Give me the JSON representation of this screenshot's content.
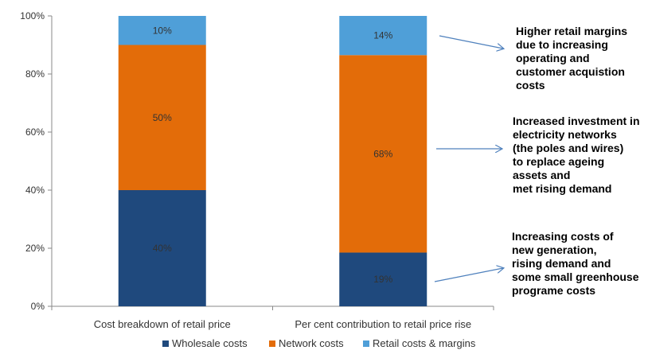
{
  "chart_data": {
    "type": "bar",
    "stacked": true,
    "categories": [
      "Cost breakdown of retail price",
      "Per cent contribution to retail price rise"
    ],
    "series": [
      {
        "name": "Wholesale costs",
        "values": [
          40,
          18.5
        ],
        "labels": [
          "40%",
          "19%"
        ],
        "color": "#1F497D"
      },
      {
        "name": "Network costs",
        "values": [
          50,
          68
        ],
        "labels": [
          "50%",
          "68%"
        ],
        "color": "#E36C09"
      },
      {
        "name": "Retail costs & margins",
        "values": [
          10,
          13.5
        ],
        "labels": [
          "10%",
          "14%"
        ],
        "color": "#4F9FD8"
      }
    ],
    "ylim": [
      0,
      100
    ],
    "yticks": [
      "0%",
      "20%",
      "40%",
      "60%",
      "80%",
      "100%"
    ],
    "ytick_values": [
      0,
      20,
      40,
      60,
      80,
      100
    ],
    "legend_position": "bottom",
    "annotations": [
      {
        "text": "Higher retail margins\ndue to increasing\noperating and\ncustomer acquistion\ncosts",
        "points_to": "Retail costs & margins"
      },
      {
        "text": "Increased investment in\nelectricity networks\n(the poles and wires)\nto replace ageing\nassets and\n met rising demand",
        "points_to": "Network costs"
      },
      {
        "text": "Increasing costs of\nnew generation,\nrising demand and\nsome small greenhouse\nprograme costs",
        "points_to": "Wholesale costs"
      }
    ]
  },
  "colors": {
    "axis": "#888888",
    "arrow": "#4F81BD",
    "text": "#333333"
  }
}
